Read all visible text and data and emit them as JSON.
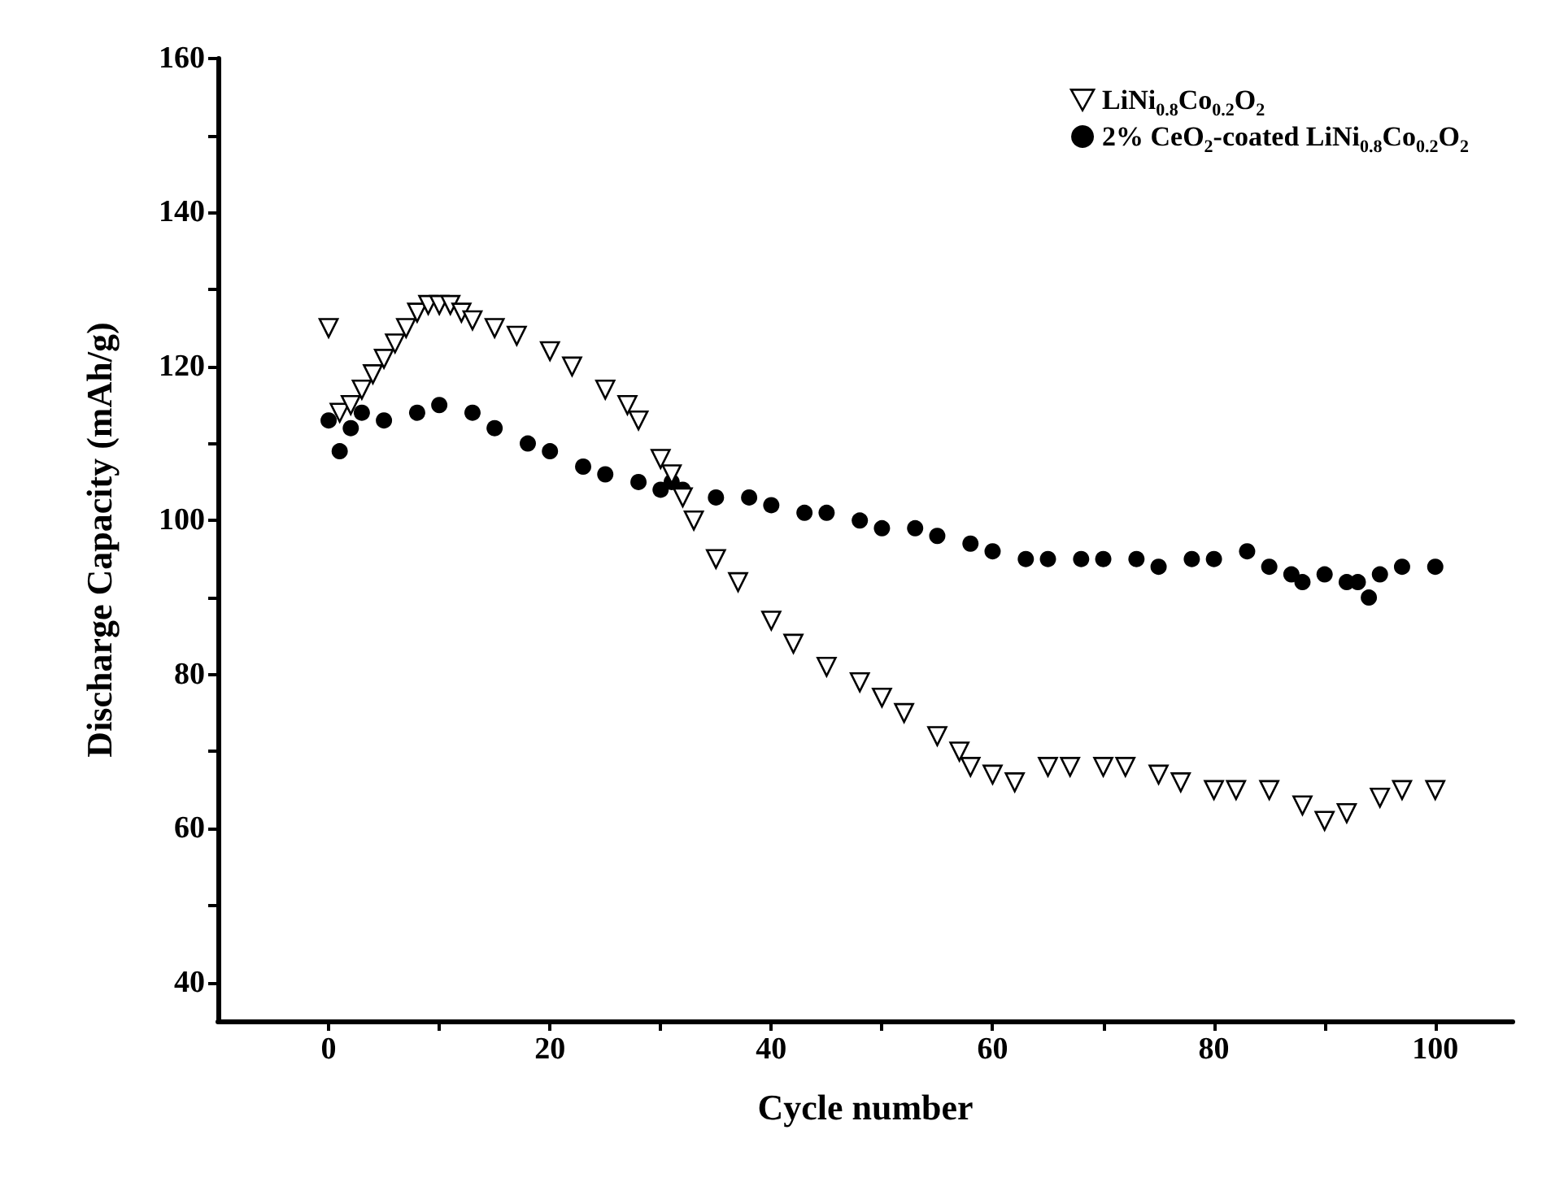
{
  "chart_data": {
    "type": "scatter",
    "xlabel": "Cycle number",
    "ylabel": "Discharge Capacity (mAh/g)",
    "xlim": [
      -10,
      107
    ],
    "ylim": [
      35,
      160
    ],
    "xticks": [
      0,
      {
        "value": 10,
        "label": null
      },
      20,
      {
        "value": 30,
        "label": null
      },
      40,
      {
        "value": 50,
        "label": null
      },
      60,
      {
        "value": 70,
        "label": null
      },
      80,
      {
        "value": 90,
        "label": null
      },
      100
    ],
    "yticks": [
      40,
      {
        "value": 50,
        "label": null
      },
      60,
      {
        "value": 70,
        "label": null
      },
      80,
      {
        "value": 90,
        "label": null
      },
      100,
      {
        "value": 110,
        "label": null
      },
      120,
      {
        "value": 130,
        "label": null
      },
      140,
      {
        "value": 150,
        "label": null
      },
      160
    ],
    "grid": false,
    "legend": "top right",
    "series": [
      {
        "name": "LiNi$_{0.8}$Co$_{0.2}$O$_{2}$",
        "color": "#000000",
        "marker": "triangle",
        "x": [
          0,
          1,
          2,
          3,
          4,
          5,
          6,
          7,
          8,
          9,
          10,
          11,
          12,
          13,
          15,
          17,
          20,
          22,
          25,
          27,
          28,
          30,
          31,
          32,
          33,
          35,
          37,
          40,
          42,
          45,
          48,
          50,
          52,
          55,
          57,
          58,
          60,
          62,
          65,
          67,
          70,
          72,
          75,
          77,
          80,
          82,
          85,
          88,
          90,
          92,
          95,
          97,
          100
        ],
        "values": [
          125,
          114,
          115,
          117,
          119,
          121,
          123,
          125,
          127,
          128,
          128,
          128,
          127,
          126,
          125,
          124,
          122,
          120,
          117,
          115,
          113,
          108,
          106,
          103,
          100,
          95,
          92,
          87,
          84,
          81,
          79,
          77,
          75,
          72,
          70,
          68,
          67,
          66,
          68,
          68,
          68,
          68,
          67,
          66,
          65,
          65,
          65,
          63,
          61,
          62,
          64,
          65,
          65
        ]
      },
      {
        "name": "2% CeO$_{2}$-coated LiNi$_{0.8}$Co$_{0.2}$O$_{2}$",
        "color": "#000000",
        "marker": "circle",
        "x": [
          0,
          1,
          2,
          3,
          5,
          8,
          10,
          13,
          15,
          18,
          20,
          23,
          25,
          28,
          30,
          31,
          32,
          35,
          38,
          40,
          43,
          45,
          48,
          50,
          53,
          55,
          58,
          60,
          63,
          65,
          68,
          70,
          73,
          75,
          78,
          80,
          83,
          85,
          87,
          88,
          90,
          92,
          93,
          94,
          95,
          97,
          100
        ],
        "values": [
          113,
          109,
          112,
          114,
          113,
          114,
          115,
          114,
          112,
          110,
          109,
          107,
          106,
          105,
          104,
          105,
          104,
          103,
          103,
          102,
          101,
          101,
          100,
          99,
          99,
          98,
          97,
          96,
          95,
          95,
          95,
          95,
          95,
          94,
          95,
          95,
          96,
          94,
          93,
          92,
          93,
          92,
          92,
          90,
          93,
          94,
          94
        ]
      }
    ]
  }
}
